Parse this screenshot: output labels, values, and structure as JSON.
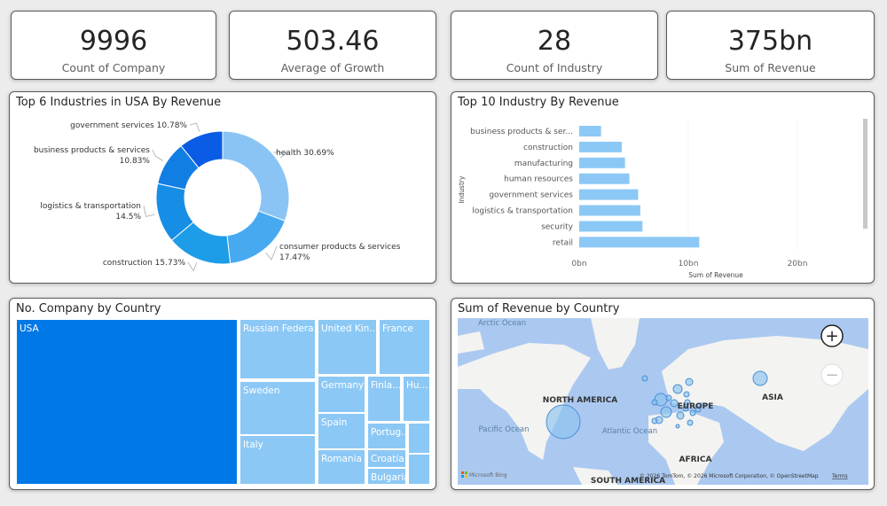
{
  "kpis": [
    {
      "value": "9996",
      "label": "Count of Company"
    },
    {
      "value": "503.46",
      "label": "Average of Growth"
    },
    {
      "value": "28",
      "label": "Count of Industry"
    },
    {
      "value": "375bn",
      "label": "Sum of Revenue"
    }
  ],
  "chart_data": [
    {
      "type": "pie",
      "variant": "donut",
      "title": "Top 6 Industries in USA By Revenue",
      "labels": [
        "health",
        "consumer products & services",
        "construction",
        "logistics & transportation",
        "business products & services",
        "government services"
      ],
      "values": [
        30.69,
        17.47,
        15.73,
        14.5,
        10.83,
        10.78
      ],
      "data_labels": [
        "health 30.69%",
        "consumer products & services 17.47%",
        "construction 15.73%",
        "logistics & transportation 14.5%",
        "business products & services 10.83%",
        "government services 10.78%"
      ],
      "colors": [
        "#8ac4f5",
        "#47aaf0",
        "#1d9ce8",
        "#168ee6",
        "#117ee4",
        "#0a5ce4"
      ]
    },
    {
      "type": "bar",
      "orientation": "horizontal",
      "title": "Top 10 Industry By Revenue",
      "categories": [
        "business products & ser...",
        "construction",
        "manufacturing",
        "human resources",
        "government services",
        "logistics & transportation",
        "security",
        "retail"
      ],
      "values": [
        2.0,
        3.9,
        4.2,
        4.6,
        5.4,
        5.6,
        5.8,
        11.0
      ],
      "unit": "bn",
      "xlabel": "Sum of Revenue",
      "ylabel": "Industry",
      "xlim": [
        0,
        25
      ],
      "xticks": [
        "0bn",
        "10bn",
        "20bn"
      ],
      "color": "#8cc8f5",
      "grid": true
    },
    {
      "type": "treemap",
      "title": "No. Company by Country",
      "labels": [
        "USA",
        "Russian Federa...",
        "Sweden",
        "Italy",
        "United Kin...",
        "France",
        "Germany",
        "Finla...",
        "Hu...",
        "Spain",
        "Portug...",
        "",
        "Romania",
        "Croatia",
        "Bulgaria",
        ""
      ],
      "colors": {
        "highlight": "#0078e6",
        "other": "#8cc8f5"
      }
    }
  ],
  "map": {
    "title": "Sum of Revenue by Country",
    "labels": {
      "arctic": "Arctic Ocean",
      "pacific": "Pacific Ocean",
      "atlantic": "Atlantic Ocean",
      "na": "NORTH AMERICA",
      "europe": "EUROPE",
      "asia": "ASIA",
      "africa": "AFRICA",
      "sa": "SOUTH AMERICA"
    },
    "brand": "Microsoft Bing",
    "copyright": "© 2026 TomTom, © 2026 Microsoft Corporation, © OpenStreetMap",
    "terms": "Terms",
    "zoom_in": "+",
    "zoom_out": "−",
    "ocean_color": "#abc9f0",
    "land_color": "#f3f3f1"
  }
}
